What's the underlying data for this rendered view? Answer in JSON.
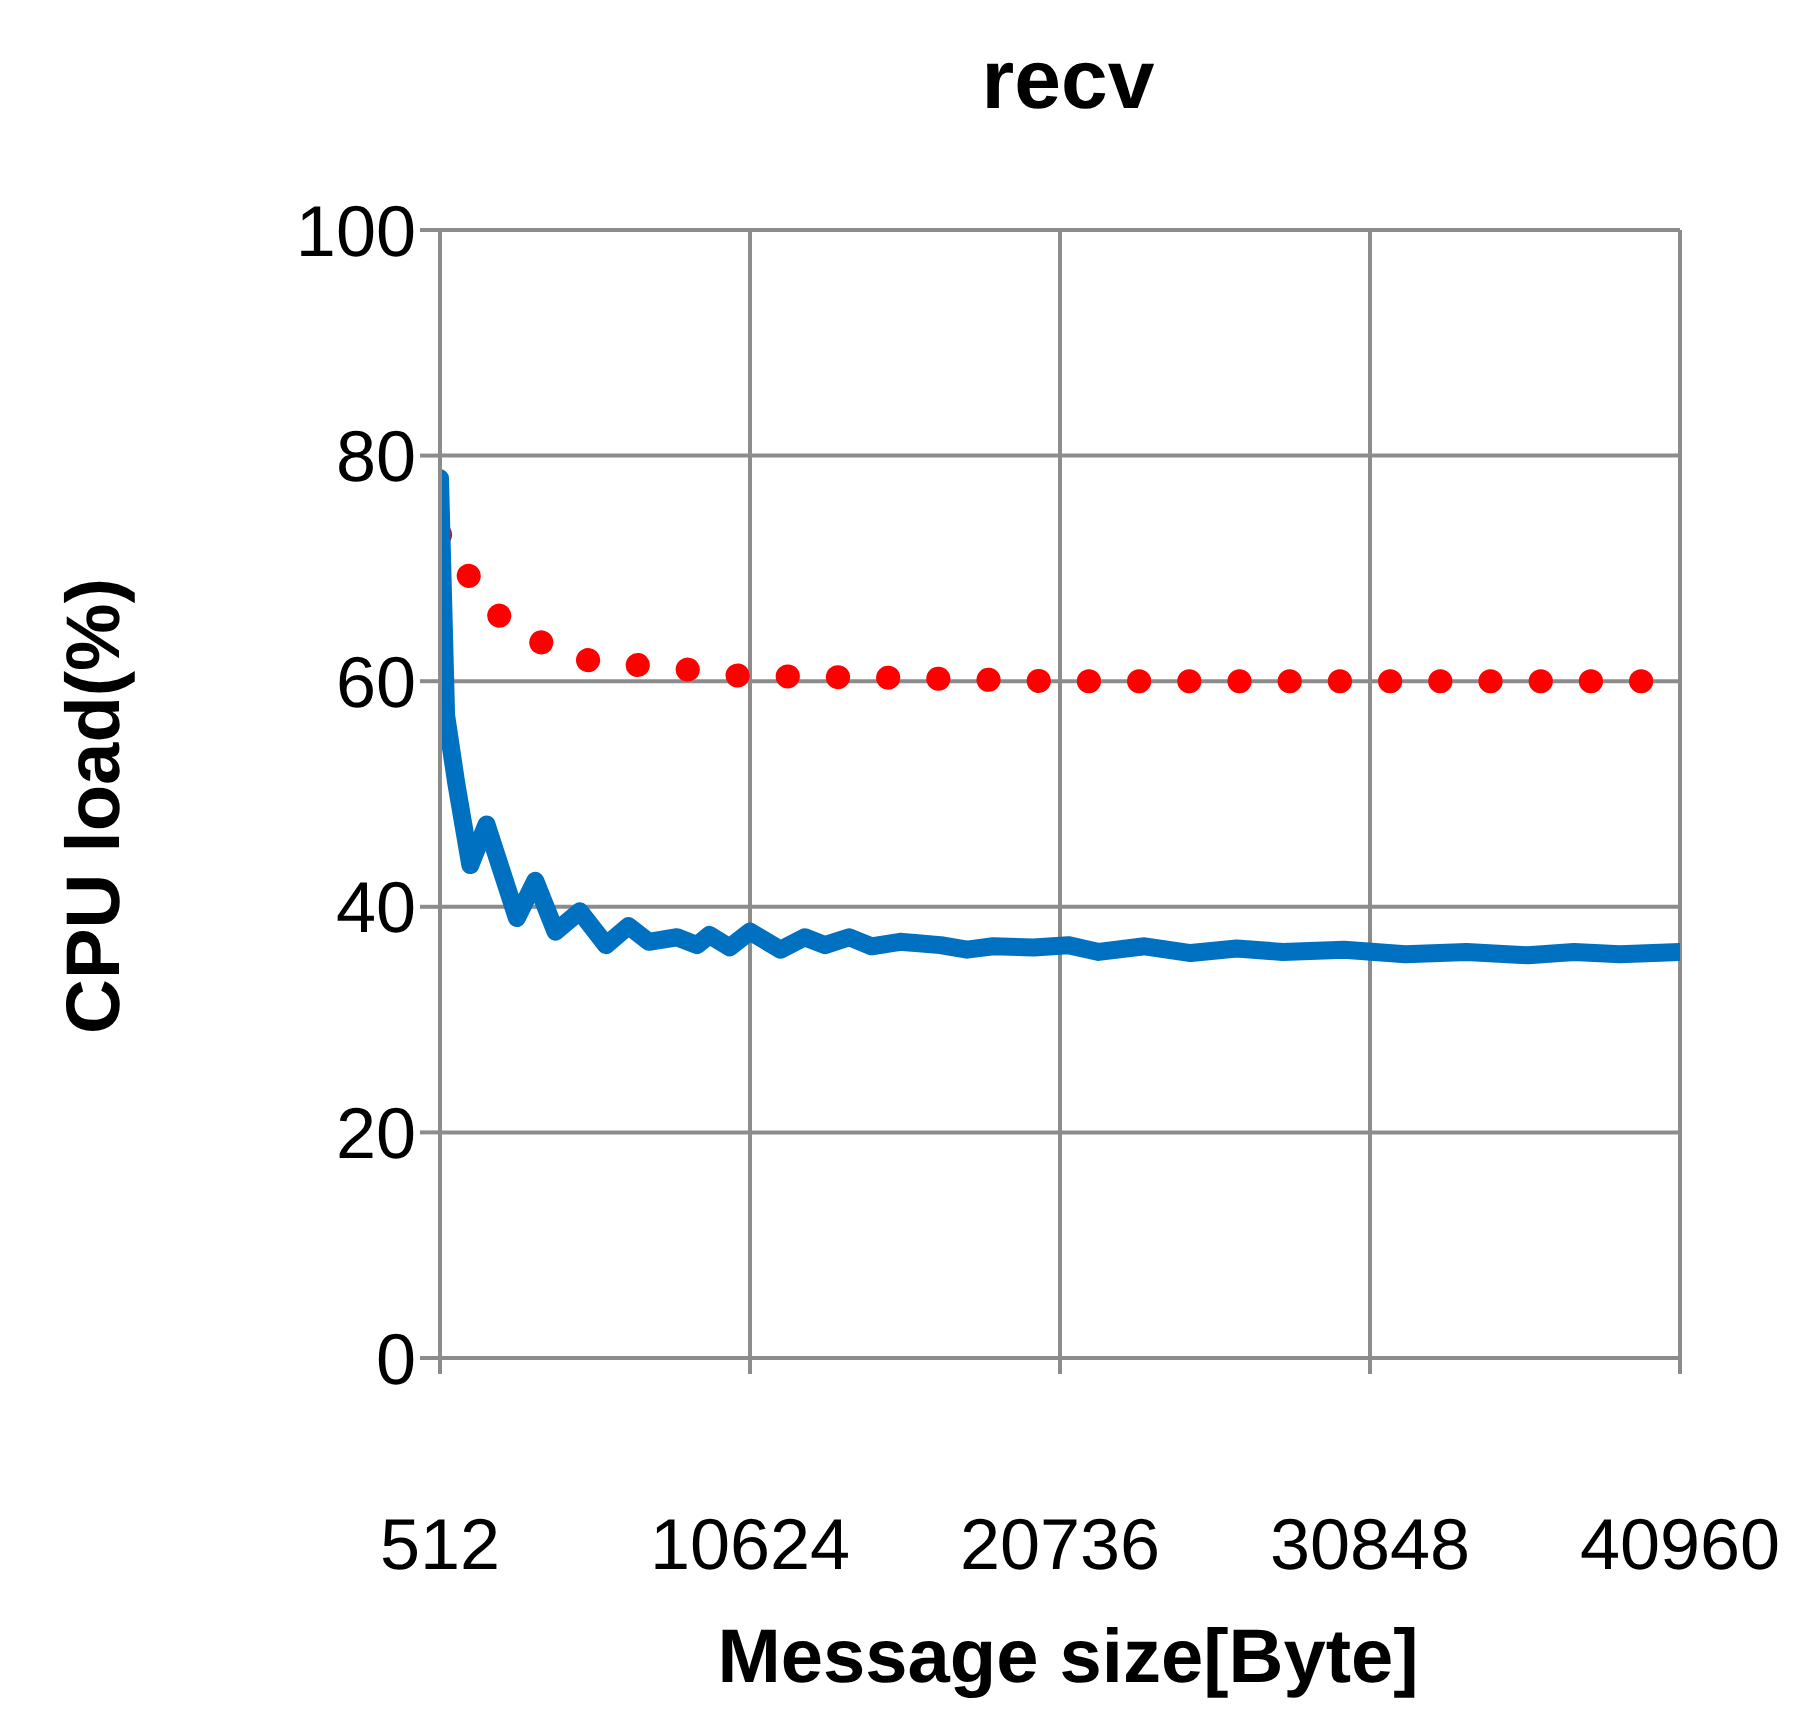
{
  "chart_data": {
    "type": "line",
    "title": "recv",
    "xlabel": "Message size[Byte]",
    "ylabel": "CPU load(%)",
    "xlim": [
      512,
      40960
    ],
    "xticks": [
      512,
      10624,
      20736,
      30848,
      40960
    ],
    "ylim": [
      0,
      100
    ],
    "yticks": [
      0,
      20,
      40,
      60,
      80,
      100
    ],
    "grid": true,
    "marker": "none",
    "series": [
      {
        "color": "#ff0000",
        "line_style": "dotted",
        "x": [
          512,
          1536,
          2560,
          4096,
          5632,
          7168,
          8704,
          10240,
          12288,
          15360,
          20480,
          25600,
          30720,
          35840,
          40960
        ],
        "values": [
          73,
          69,
          65.4,
          63,
          61.6,
          61.4,
          61,
          60.5,
          60.4,
          60.3,
          60,
          60,
          60,
          60,
          60
        ]
      },
      {
        "color": "#0070c0",
        "line_style": "solid",
        "x": [
          512,
          710,
          1040,
          1500,
          2030,
          3020,
          3620,
          4280,
          5070,
          5930,
          6660,
          7320,
          8240,
          8900,
          9300,
          9960,
          10620,
          11620,
          12410,
          13070,
          13860,
          14590,
          15520,
          16840,
          17700,
          18560,
          19880,
          21000,
          22000,
          23500,
          25000,
          26500,
          28000,
          30000,
          32000,
          34000,
          36000,
          37500,
          39000,
          40960
        ],
        "values": [
          78,
          57,
          51,
          43.7,
          47.3,
          39,
          42.3,
          37.8,
          39.6,
          36.6,
          38.3,
          36.9,
          37.3,
          36.6,
          37.5,
          36.4,
          37.8,
          36.2,
          37.3,
          36.6,
          37.3,
          36.5,
          36.9,
          36.6,
          36.2,
          36.5,
          36.4,
          36.6,
          36,
          36.5,
          35.9,
          36.3,
          36,
          36.2,
          35.8,
          36,
          35.7,
          36,
          35.8,
          36
        ]
      }
    ]
  }
}
